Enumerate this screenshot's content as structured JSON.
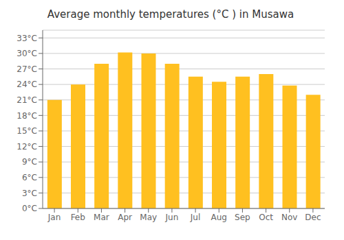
{
  "chart_data": {
    "type": "bar",
    "title": "Average monthly temperatures (°C ) in Musawa",
    "categories": [
      "Jan",
      "Feb",
      "Mar",
      "Apr",
      "May",
      "Jun",
      "Jul",
      "Aug",
      "Sep",
      "Oct",
      "Nov",
      "Dec"
    ],
    "values": [
      21,
      24,
      28,
      30.2,
      30,
      28,
      25.5,
      24.5,
      25.5,
      26,
      23.8,
      22
    ],
    "color": "#FFC020",
    "ylim": [
      0,
      34.5
    ],
    "yticks": [
      {
        "value": 0,
        "label": "0°C"
      },
      {
        "value": 3,
        "label": "3°C"
      },
      {
        "value": 6,
        "label": "6°C"
      },
      {
        "value": 9,
        "label": "9°C"
      },
      {
        "value": 12,
        "label": "12°C"
      },
      {
        "value": 15,
        "label": "15°C"
      },
      {
        "value": 18,
        "label": "18°C"
      },
      {
        "value": 21,
        "label": "21°C"
      },
      {
        "value": 24,
        "label": "24°C"
      },
      {
        "value": 27,
        "label": "27°C"
      },
      {
        "value": 30,
        "label": "30°C"
      },
      {
        "value": 33,
        "label": "33°C"
      }
    ],
    "grid": true
  }
}
